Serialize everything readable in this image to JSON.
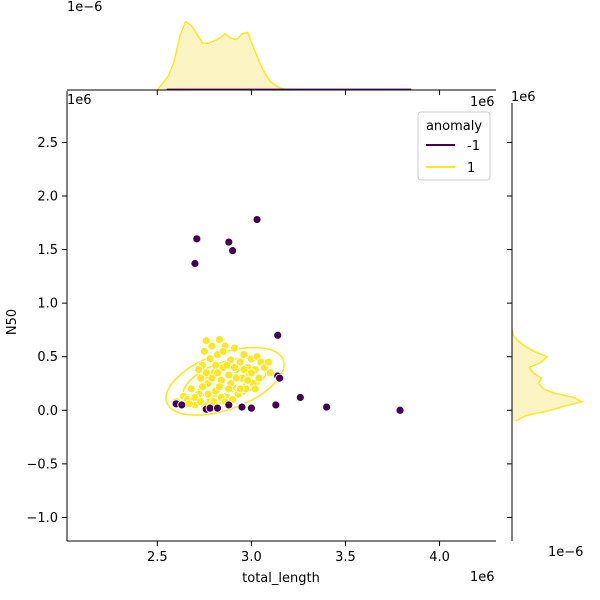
{
  "chart_data": {
    "type": "scatter",
    "title": "",
    "xlabel": "total_length",
    "ylabel": "N50",
    "x_offset_label": "1e6",
    "y_offset_label": "1e6",
    "top_marginal_offset_label": "1e−6",
    "right_marginal_offset_label": "1e−6",
    "xlim": [
      2.02,
      4.3
    ],
    "ylim": [
      -1.22,
      2.98
    ],
    "x_ticks": [
      2.5,
      3.0,
      3.5,
      4.0
    ],
    "x_tick_labels": [
      "2.5",
      "3.0",
      "3.5",
      "4.0"
    ],
    "y_ticks": [
      -1.0,
      -0.5,
      0.0,
      0.5,
      1.0,
      1.5,
      2.0,
      2.5
    ],
    "y_tick_labels": [
      "−1.0",
      "−0.5",
      "0.0",
      "0.5",
      "1.0",
      "1.5",
      "2.0",
      "2.5"
    ],
    "grid": false,
    "legend": {
      "title": "anomaly",
      "placement": "top-right",
      "entries": [
        "-1",
        "1"
      ]
    },
    "colors": {
      "anomaly": "#440154",
      "normal": "#fde725",
      "fill": "#fdf4c4",
      "contour": "#fde725"
    },
    "series": [
      {
        "name": "-1",
        "points": [
          [
            2.71,
            1.6
          ],
          [
            2.7,
            1.37
          ],
          [
            2.88,
            1.57
          ],
          [
            2.9,
            1.49
          ],
          [
            3.03,
            1.78
          ],
          [
            3.14,
            0.7
          ],
          [
            3.14,
            0.32
          ],
          [
            3.15,
            0.3
          ],
          [
            3.26,
            0.12
          ],
          [
            3.13,
            0.05
          ],
          [
            3.4,
            0.03
          ],
          [
            3.79,
            0.0
          ],
          [
            3.0,
            0.02
          ],
          [
            2.6,
            0.06
          ],
          [
            2.63,
            0.05
          ],
          [
            2.76,
            0.01
          ],
          [
            2.78,
            0.02
          ],
          [
            2.82,
            0.02
          ],
          [
            2.95,
            0.03
          ],
          [
            2.88,
            0.05
          ]
        ]
      },
      {
        "name": "1",
        "points": [
          [
            2.6,
            0.08
          ],
          [
            2.64,
            0.13
          ],
          [
            2.66,
            0.1
          ],
          [
            2.68,
            0.2
          ],
          [
            2.7,
            0.05
          ],
          [
            2.72,
            0.15
          ],
          [
            2.73,
            0.3
          ],
          [
            2.74,
            0.42
          ],
          [
            2.75,
            0.55
          ],
          [
            2.76,
            0.65
          ],
          [
            2.77,
            0.25
          ],
          [
            2.78,
            0.48
          ],
          [
            2.79,
            0.6
          ],
          [
            2.8,
            0.35
          ],
          [
            2.81,
            0.18
          ],
          [
            2.82,
            0.52
          ],
          [
            2.83,
            0.66
          ],
          [
            2.84,
            0.28
          ],
          [
            2.85,
            0.4
          ],
          [
            2.86,
            0.6
          ],
          [
            2.87,
            0.12
          ],
          [
            2.88,
            0.33
          ],
          [
            2.89,
            0.47
          ],
          [
            2.9,
            0.22
          ],
          [
            2.91,
            0.58
          ],
          [
            2.92,
            0.38
          ],
          [
            2.93,
            0.15
          ],
          [
            2.94,
            0.45
          ],
          [
            2.95,
            0.3
          ],
          [
            2.96,
            0.52
          ],
          [
            2.97,
            0.2
          ],
          [
            2.98,
            0.4
          ],
          [
            2.99,
            0.33
          ],
          [
            3.0,
            0.48
          ],
          [
            3.01,
            0.25
          ],
          [
            3.02,
            0.38
          ],
          [
            3.03,
            0.5
          ],
          [
            3.04,
            0.3
          ],
          [
            3.05,
            0.45
          ],
          [
            3.07,
            0.4
          ],
          [
            3.09,
            0.45
          ],
          [
            3.1,
            0.35
          ],
          [
            2.75,
            0.05
          ],
          [
            2.78,
            0.1
          ],
          [
            2.8,
            0.08
          ],
          [
            2.84,
            0.12
          ],
          [
            2.86,
            0.08
          ],
          [
            2.9,
            0.1
          ],
          [
            2.72,
            0.38
          ],
          [
            2.74,
            0.22
          ],
          [
            2.76,
            0.35
          ],
          [
            2.79,
            0.3
          ],
          [
            2.81,
            0.42
          ],
          [
            2.83,
            0.22
          ],
          [
            2.85,
            0.55
          ],
          [
            2.87,
            0.42
          ],
          [
            2.89,
            0.25
          ],
          [
            2.92,
            0.3
          ],
          [
            2.94,
            0.2
          ],
          [
            2.96,
            0.38
          ],
          [
            2.98,
            0.28
          ],
          [
            3.0,
            0.35
          ],
          [
            3.02,
            0.2
          ],
          [
            2.7,
            0.12
          ],
          [
            2.67,
            0.06
          ],
          [
            2.73,
            0.08
          ],
          [
            2.77,
            0.15
          ],
          [
            2.82,
            0.35
          ],
          [
            2.88,
            0.2
          ],
          [
            2.91,
            0.4
          ]
        ]
      }
    ],
    "marginal_x_density": {
      "series": "1",
      "x": [
        2.5,
        2.53,
        2.56,
        2.59,
        2.62,
        2.65,
        2.68,
        2.71,
        2.74,
        2.77,
        2.8,
        2.83,
        2.86,
        2.89,
        2.92,
        2.95,
        2.98,
        3.01,
        3.04,
        3.07,
        3.1,
        3.13,
        3.16,
        3.2
      ],
      "density": [
        0,
        0.1,
        0.2,
        0.4,
        0.75,
        0.95,
        0.9,
        0.78,
        0.65,
        0.65,
        0.68,
        0.72,
        0.78,
        0.72,
        0.7,
        0.78,
        0.8,
        0.6,
        0.4,
        0.24,
        0.12,
        0.06,
        0.02,
        0
      ]
    },
    "marginal_y_density": {
      "series": "1",
      "y": [
        -0.1,
        -0.05,
        0.0,
        0.04,
        0.08,
        0.12,
        0.16,
        0.2,
        0.25,
        0.3,
        0.35,
        0.4,
        0.45,
        0.5,
        0.55,
        0.6,
        0.65,
        0.7,
        0.75
      ],
      "density": [
        0.05,
        0.2,
        0.55,
        0.75,
        1.0,
        0.88,
        0.6,
        0.45,
        0.38,
        0.42,
        0.3,
        0.25,
        0.42,
        0.5,
        0.32,
        0.18,
        0.08,
        0.02,
        0
      ]
    }
  }
}
